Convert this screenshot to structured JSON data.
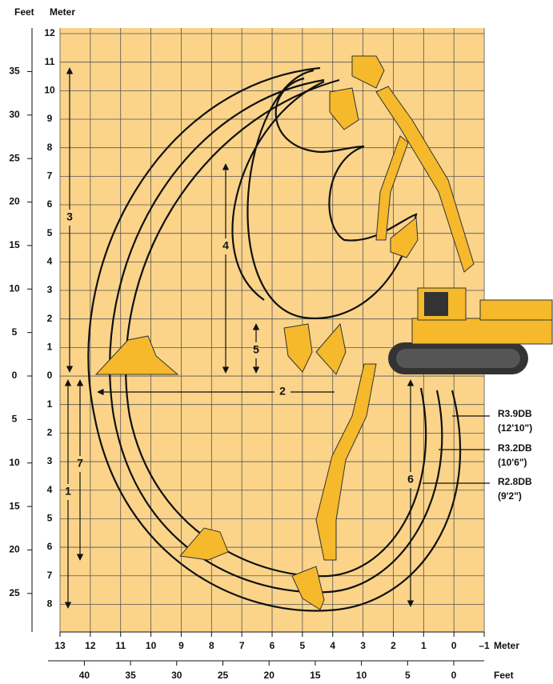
{
  "header": {
    "left_top_feet": "Feet",
    "left_top_meter": "Meter"
  },
  "left_axis": {
    "meter_labels": [
      "12",
      "11",
      "10",
      "9",
      "8",
      "7",
      "6",
      "5",
      "4",
      "3",
      "2",
      "1",
      "0",
      "1",
      "2",
      "3",
      "4",
      "5",
      "6",
      "7",
      "8"
    ],
    "feet_labels": [
      "35",
      "30",
      "25",
      "20",
      "15",
      "10",
      "5",
      "0",
      "5",
      "10",
      "15",
      "20",
      "25"
    ]
  },
  "bottom_axis": {
    "meter_labels": [
      "13",
      "12",
      "11",
      "10",
      "9",
      "8",
      "7",
      "6",
      "5",
      "4",
      "3",
      "2",
      "1",
      "0",
      "–1"
    ],
    "meter_unit": "Meter",
    "feet_labels": [
      "40",
      "35",
      "30",
      "25",
      "20",
      "15",
      "10",
      "5",
      "0"
    ],
    "feet_unit": "Feet"
  },
  "dimensions": [
    "1",
    "2",
    "3",
    "4",
    "5",
    "6",
    "7"
  ],
  "booms": [
    {
      "name": "R3.9DB",
      "size": "(12'10\")"
    },
    {
      "name": "R3.2DB",
      "size": "(10'6\")"
    },
    {
      "name": "R2.8DB",
      "size": "(9'2\")"
    }
  ]
}
